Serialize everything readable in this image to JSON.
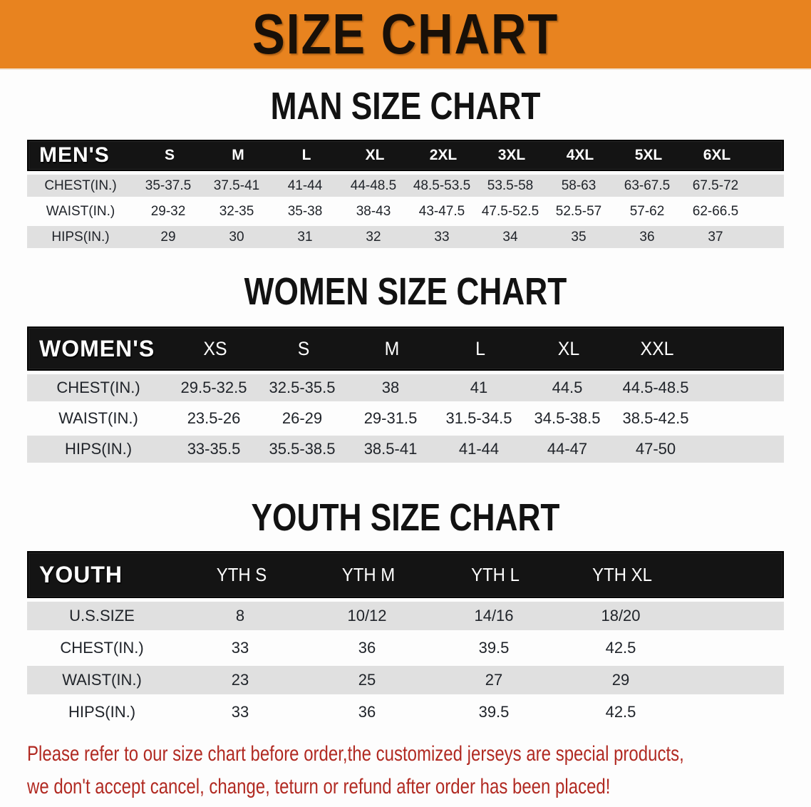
{
  "banner": {
    "title": "SIZE CHART"
  },
  "colors": {
    "banner-bg": "#E8831F",
    "banner-text": "#181008",
    "header-bar-bg": "#141414",
    "header-bar-text": "#FFFFFF",
    "row-stripe": "#E0E0E0",
    "body-text": "#20242A",
    "disclaimer-red": "#B12A22"
  },
  "sections": [
    {
      "heading": "MAN SIZE CHART",
      "table": {
        "key": "mens",
        "header_label": "MEN'S",
        "columns": [
          "S",
          "M",
          "L",
          "XL",
          "2XL",
          "3XL",
          "4XL",
          "5XL",
          "6XL"
        ],
        "rows": [
          {
            "label": "CHEST(IN.)",
            "values": [
              "35-37.5",
              "37.5-41",
              "41-44",
              "44-48.5",
              "48.5-53.5",
              "53.5-58",
              "58-63",
              "63-67.5",
              "67.5-72"
            ]
          },
          {
            "label": "WAIST(IN.)",
            "values": [
              "29-32",
              "32-35",
              "35-38",
              "38-43",
              "43-47.5",
              "47.5-52.5",
              "52.5-57",
              "57-62",
              "62-66.5"
            ]
          },
          {
            "label": "HIPS(IN.)",
            "values": [
              "29",
              "30",
              "31",
              "32",
              "33",
              "34",
              "35",
              "36",
              "37"
            ]
          }
        ]
      }
    },
    {
      "heading": "WOMEN SIZE CHART",
      "table": {
        "key": "womens",
        "header_label": "WOMEN'S",
        "columns": [
          "XS",
          "S",
          "M",
          "L",
          "XL",
          "XXL"
        ],
        "rows": [
          {
            "label": "CHEST(IN.)",
            "values": [
              "29.5-32.5",
              "32.5-35.5",
              "38",
              "41",
              "44.5",
              "44.5-48.5"
            ]
          },
          {
            "label": "WAIST(IN.)",
            "values": [
              "23.5-26",
              "26-29",
              "29-31.5",
              "31.5-34.5",
              "34.5-38.5",
              "38.5-42.5"
            ]
          },
          {
            "label": "HIPS(IN.)",
            "values": [
              "33-35.5",
              "35.5-38.5",
              "38.5-41",
              "41-44",
              "44-47",
              "47-50"
            ]
          }
        ]
      }
    },
    {
      "heading": "YOUTH SIZE CHART",
      "table": {
        "key": "youth",
        "header_label": "YOUTH",
        "columns": [
          "YTH S",
          "YTH M",
          "YTH L",
          "YTH XL"
        ],
        "rows": [
          {
            "label": "U.S.SIZE",
            "values": [
              "8",
              "10/12",
              "14/16",
              "18/20"
            ]
          },
          {
            "label": "CHEST(IN.)",
            "values": [
              "33",
              "36",
              "39.5",
              "42.5"
            ]
          },
          {
            "label": "WAIST(IN.)",
            "values": [
              "23",
              "25",
              "27",
              "29"
            ]
          },
          {
            "label": "HIPS(IN.)",
            "values": [
              "33",
              "36",
              "39.5",
              "42.5"
            ]
          }
        ]
      }
    }
  ],
  "disclaimer": {
    "lines": [
      "Please refer to our size chart before order,the customized jerseys are special products,",
      "we don't accept cancel, change, teturn or refund after order has been placed!"
    ]
  }
}
